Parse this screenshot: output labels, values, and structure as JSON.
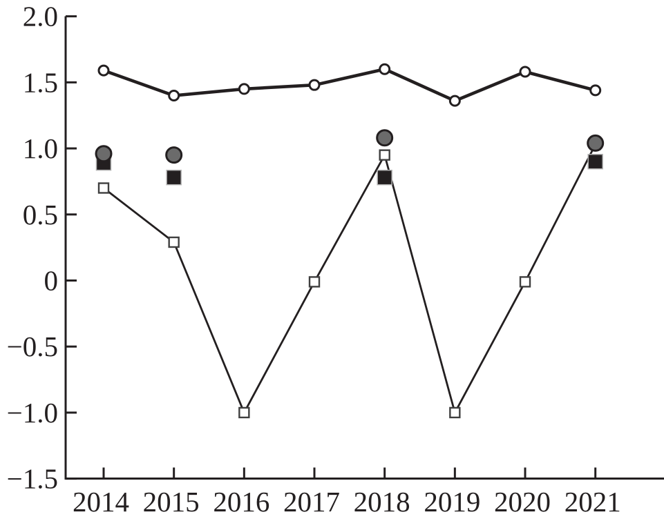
{
  "chart_data": {
    "type": "line",
    "title": "",
    "xlabel": "",
    "ylabel": "",
    "x_categories": [
      "2014",
      "2015",
      "2016",
      "2017",
      "2018",
      "2019",
      "2020",
      "2021"
    ],
    "ylim": [
      -1.5,
      2.0
    ],
    "yticks": [
      2.0,
      1.5,
      1.0,
      0.5,
      0.0,
      -0.5,
      -1.0,
      -1.5
    ],
    "ytick_labels": [
      "2.0",
      "1.5",
      "1.0",
      "0.5",
      "0",
      "−0.5",
      "−1.0",
      "−1.5"
    ],
    "grid": false,
    "legend": "none",
    "series": [
      {
        "name": "open-square-line",
        "type": "line",
        "marker": "open-square",
        "x": [
          "2014",
          "2015",
          "2016",
          "2017",
          "2018",
          "2019",
          "2020",
          "2021"
        ],
        "values": [
          0.7,
          0.29,
          -1.0,
          -0.01,
          0.95,
          -1.0,
          -0.01,
          1.03
        ],
        "note": "2021 marker hidden behind gray filled circle"
      },
      {
        "name": "open-circle-line",
        "type": "line",
        "marker": "open-circle",
        "x": [
          "2014",
          "2015",
          "2016",
          "2017",
          "2018",
          "2019",
          "2020",
          "2021"
        ],
        "values": [
          1.59,
          1.4,
          1.45,
          1.48,
          1.6,
          1.36,
          1.58,
          1.44
        ]
      },
      {
        "name": "black-square-points",
        "type": "scatter",
        "marker": "filled-black-square",
        "x": [
          "2014",
          "2015",
          "2018",
          "2021"
        ],
        "values": [
          0.89,
          0.78,
          0.78,
          0.9
        ]
      },
      {
        "name": "gray-circle-points",
        "type": "scatter",
        "marker": "filled-gray-circle",
        "x": [
          "2014",
          "2015",
          "2018",
          "2021"
        ],
        "values": [
          0.96,
          0.95,
          1.08,
          1.04
        ]
      }
    ],
    "colors": {
      "ink": "#231f20",
      "gray_fill": "#6b6b6b",
      "black_fill": "#231f20",
      "open_marker_fill": "#ffffff",
      "square_edge": "#b3b3b3",
      "background": "#ffffff"
    }
  }
}
